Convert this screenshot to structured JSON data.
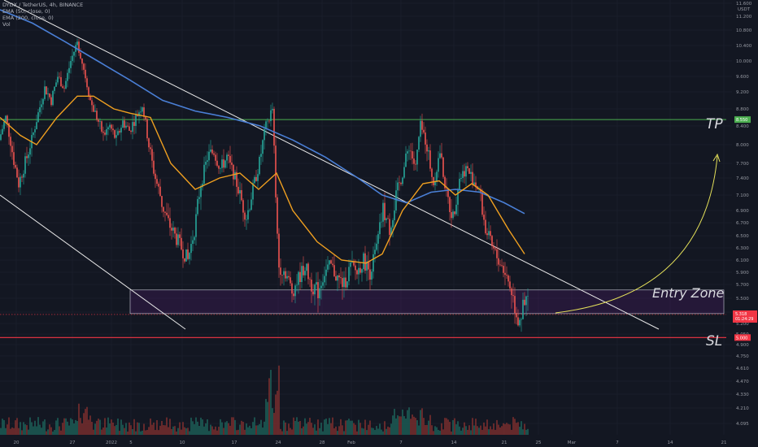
{
  "chart_data": {
    "type": "candlestick",
    "legend": {
      "symbol_line": "DYDX / TetherUS, 4h, BINANCE",
      "ema50": "EMA (50, close, 0)",
      "ema200": "EMA (200, close, 0)",
      "volume": "Vol"
    },
    "y_axis": {
      "unit_label": "USDT",
      "ticks": [
        "11.600",
        "11.200",
        "10.800",
        "10.400",
        "10.000",
        "9.600",
        "9.200",
        "8.800",
        "8.400",
        "8.000",
        "7.700",
        "7.400",
        "7.100",
        "6.900",
        "6.700",
        "6.500",
        "6.300",
        "6.100",
        "5.900",
        "5.700",
        "5.500",
        "5.350",
        "5.200",
        "5.050",
        "4.900",
        "4.750",
        "4.610",
        "4.470",
        "4.330",
        "4.210",
        "4.095"
      ],
      "ylim": [
        4.09,
        11.6
      ]
    },
    "x_axis": {
      "ticks": [
        "20",
        "27",
        "2022",
        "5",
        "10",
        "17",
        "24",
        "28",
        "Feb",
        "7",
        "14",
        "21",
        "25",
        "Mar",
        "7",
        "14",
        "21"
      ]
    },
    "levels": {
      "tp": {
        "label": "TP",
        "value": 8.55,
        "badge": "8.550",
        "color": "#4caf50"
      },
      "sl": {
        "label": "SL",
        "value": 5.0,
        "badge": "5.000",
        "color": "#f23645"
      },
      "entry_zone": {
        "label": "Entry Zone",
        "from": 5.33,
        "to": 5.62,
        "color": "#9c27b0"
      },
      "current_price": {
        "badge": "5.318",
        "countdown": "01:24:29",
        "color": "#f23645"
      }
    },
    "price_series": [
      {
        "x": 0,
        "close": 8.1
      },
      {
        "x": 8,
        "close": 8.6
      },
      {
        "x": 16,
        "close": 7.9
      },
      {
        "x": 24,
        "close": 7.3
      },
      {
        "x": 32,
        "close": 7.7
      },
      {
        "x": 40,
        "close": 8.1
      },
      {
        "x": 48,
        "close": 8.7
      },
      {
        "x": 56,
        "close": 9.3
      },
      {
        "x": 64,
        "close": 9.0
      },
      {
        "x": 72,
        "close": 9.6
      },
      {
        "x": 80,
        "close": 9.3
      },
      {
        "x": 88,
        "close": 10.0
      },
      {
        "x": 96,
        "close": 10.5
      },
      {
        "x": 104,
        "close": 9.8
      },
      {
        "x": 112,
        "close": 9.0
      },
      {
        "x": 120,
        "close": 8.6
      },
      {
        "x": 128,
        "close": 8.2
      },
      {
        "x": 136,
        "close": 8.4
      },
      {
        "x": 144,
        "close": 8.1
      },
      {
        "x": 152,
        "close": 8.5
      },
      {
        "x": 160,
        "close": 8.3
      },
      {
        "x": 168,
        "close": 8.6
      },
      {
        "x": 176,
        "close": 8.9
      },
      {
        "x": 184,
        "close": 8.0
      },
      {
        "x": 192,
        "close": 7.4
      },
      {
        "x": 200,
        "close": 7.0
      },
      {
        "x": 208,
        "close": 6.7
      },
      {
        "x": 216,
        "close": 6.5
      },
      {
        "x": 224,
        "close": 6.3
      },
      {
        "x": 232,
        "close": 6.1
      },
      {
        "x": 240,
        "close": 6.6
      },
      {
        "x": 248,
        "close": 7.3
      },
      {
        "x": 256,
        "close": 7.8
      },
      {
        "x": 264,
        "close": 7.9
      },
      {
        "x": 272,
        "close": 7.6
      },
      {
        "x": 280,
        "close": 7.8
      },
      {
        "x": 288,
        "close": 7.5
      },
      {
        "x": 296,
        "close": 7.1
      },
      {
        "x": 304,
        "close": 6.8
      },
      {
        "x": 312,
        "close": 7.2
      },
      {
        "x": 320,
        "close": 7.7
      },
      {
        "x": 328,
        "close": 8.4
      },
      {
        "x": 336,
        "close": 8.8
      },
      {
        "x": 340,
        "close": 7.0
      },
      {
        "x": 344,
        "close": 6.0
      },
      {
        "x": 352,
        "close": 5.9
      },
      {
        "x": 360,
        "close": 5.6
      },
      {
        "x": 368,
        "close": 5.8
      },
      {
        "x": 376,
        "close": 6.0
      },
      {
        "x": 384,
        "close": 5.7
      },
      {
        "x": 392,
        "close": 5.6
      },
      {
        "x": 400,
        "close": 5.9
      },
      {
        "x": 408,
        "close": 6.0
      },
      {
        "x": 416,
        "close": 5.8
      },
      {
        "x": 424,
        "close": 5.7
      },
      {
        "x": 432,
        "close": 6.0
      },
      {
        "x": 440,
        "close": 5.9
      },
      {
        "x": 448,
        "close": 6.1
      },
      {
        "x": 456,
        "close": 5.9
      },
      {
        "x": 464,
        "close": 6.3
      },
      {
        "x": 472,
        "close": 6.9
      },
      {
        "x": 480,
        "close": 6.6
      },
      {
        "x": 488,
        "close": 7.1
      },
      {
        "x": 496,
        "close": 7.5
      },
      {
        "x": 504,
        "close": 8.0
      },
      {
        "x": 512,
        "close": 7.6
      },
      {
        "x": 518,
        "close": 8.4
      },
      {
        "x": 526,
        "close": 8.0
      },
      {
        "x": 534,
        "close": 7.3
      },
      {
        "x": 542,
        "close": 7.9
      },
      {
        "x": 550,
        "close": 7.1
      },
      {
        "x": 558,
        "close": 6.8
      },
      {
        "x": 566,
        "close": 7.4
      },
      {
        "x": 574,
        "close": 7.6
      },
      {
        "x": 582,
        "close": 7.4
      },
      {
        "x": 590,
        "close": 7.2
      },
      {
        "x": 598,
        "close": 6.6
      },
      {
        "x": 606,
        "close": 6.3
      },
      {
        "x": 614,
        "close": 6.1
      },
      {
        "x": 622,
        "close": 5.9
      },
      {
        "x": 630,
        "close": 5.6
      },
      {
        "x": 638,
        "close": 5.25
      },
      {
        "x": 646,
        "close": 5.4
      },
      {
        "x": 650,
        "close": 5.5
      }
    ],
    "ema50": [
      {
        "x": 0,
        "y": 8.6
      },
      {
        "x": 25,
        "y": 8.2
      },
      {
        "x": 45,
        "y": 8.0
      },
      {
        "x": 70,
        "y": 8.6
      },
      {
        "x": 95,
        "y": 9.1
      },
      {
        "x": 115,
        "y": 9.1
      },
      {
        "x": 140,
        "y": 8.8
      },
      {
        "x": 160,
        "y": 8.7
      },
      {
        "x": 185,
        "y": 8.6
      },
      {
        "x": 210,
        "y": 7.7
      },
      {
        "x": 240,
        "y": 7.2
      },
      {
        "x": 270,
        "y": 7.4
      },
      {
        "x": 295,
        "y": 7.5
      },
      {
        "x": 318,
        "y": 7.2
      },
      {
        "x": 340,
        "y": 7.5
      },
      {
        "x": 360,
        "y": 6.9
      },
      {
        "x": 390,
        "y": 6.4
      },
      {
        "x": 420,
        "y": 6.1
      },
      {
        "x": 450,
        "y": 6.05
      },
      {
        "x": 470,
        "y": 6.2
      },
      {
        "x": 495,
        "y": 6.9
      },
      {
        "x": 520,
        "y": 7.3
      },
      {
        "x": 540,
        "y": 7.35
      },
      {
        "x": 560,
        "y": 7.1
      },
      {
        "x": 580,
        "y": 7.3
      },
      {
        "x": 600,
        "y": 7.1
      },
      {
        "x": 625,
        "y": 6.6
      },
      {
        "x": 645,
        "y": 6.2
      }
    ],
    "ema200": [
      {
        "x": 0,
        "y": 11.4
      },
      {
        "x": 40,
        "y": 11.0
      },
      {
        "x": 80,
        "y": 10.5
      },
      {
        "x": 120,
        "y": 10.0
      },
      {
        "x": 160,
        "y": 9.5
      },
      {
        "x": 200,
        "y": 9.0
      },
      {
        "x": 240,
        "y": 8.75
      },
      {
        "x": 280,
        "y": 8.6
      },
      {
        "x": 320,
        "y": 8.4
      },
      {
        "x": 360,
        "y": 8.1
      },
      {
        "x": 400,
        "y": 7.8
      },
      {
        "x": 440,
        "y": 7.4
      },
      {
        "x": 470,
        "y": 7.1
      },
      {
        "x": 500,
        "y": 7.0
      },
      {
        "x": 530,
        "y": 7.15
      },
      {
        "x": 560,
        "y": 7.2
      },
      {
        "x": 590,
        "y": 7.15
      },
      {
        "x": 620,
        "y": 7.0
      },
      {
        "x": 645,
        "y": 6.85
      }
    ]
  }
}
